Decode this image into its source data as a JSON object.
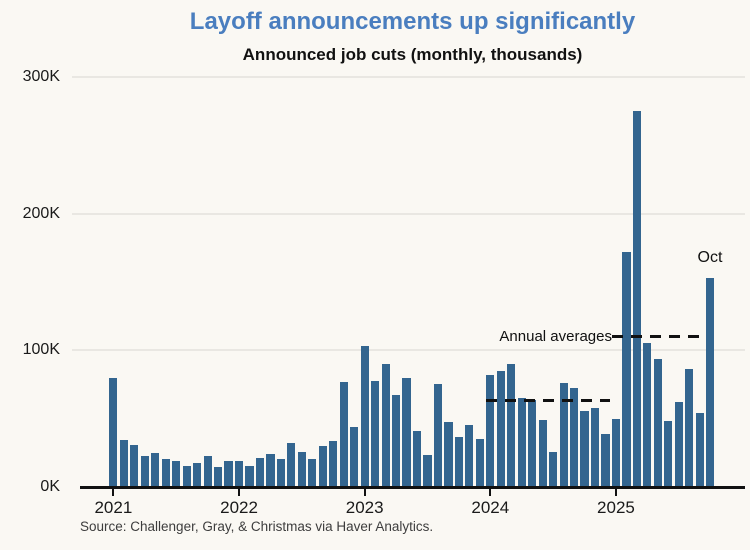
{
  "title": "Layoff announcements up significantly",
  "subtitle": "Announced job cuts (monthly, thousands)",
  "source": "Source: Challenger, Gray, & Christmas via Haver Analytics.",
  "annotations": {
    "annual_averages_label": "Annual averages",
    "last_bar_label": "Oct"
  },
  "colors": {
    "background": "#faf8f3",
    "bar": "#33658f",
    "title_blue": "#4a7ebf",
    "gridline": "#e9e7e2",
    "axis_and_dashes": "#111111",
    "source_text": "#3d3d3d"
  },
  "chart_data": {
    "type": "bar",
    "title": "Announced job cuts (monthly, thousands)",
    "unit": "thousands of announced job cuts per month",
    "x": [
      "2021-01",
      "2021-02",
      "2021-03",
      "2021-04",
      "2021-05",
      "2021-06",
      "2021-07",
      "2021-08",
      "2021-09",
      "2021-10",
      "2021-11",
      "2021-12",
      "2022-01",
      "2022-02",
      "2022-03",
      "2022-04",
      "2022-05",
      "2022-06",
      "2022-07",
      "2022-08",
      "2022-09",
      "2022-10",
      "2022-11",
      "2022-12",
      "2023-01",
      "2023-02",
      "2023-03",
      "2023-04",
      "2023-05",
      "2023-06",
      "2023-07",
      "2023-08",
      "2023-09",
      "2023-10",
      "2023-11",
      "2023-12",
      "2024-01",
      "2024-02",
      "2024-03",
      "2024-04",
      "2024-05",
      "2024-06",
      "2024-07",
      "2024-08",
      "2024-09",
      "2024-10",
      "2024-11",
      "2024-12",
      "2025-01",
      "2025-02",
      "2025-03",
      "2025-04",
      "2025-05",
      "2025-06",
      "2025-07",
      "2025-08",
      "2025-09",
      "2025-10"
    ],
    "values": [
      79.6,
      34.5,
      30.6,
      22.9,
      24.6,
      20.5,
      18.9,
      15.7,
      17.9,
      22.8,
      14.9,
      19.1,
      19.1,
      15.2,
      21.4,
      24.3,
      20.7,
      32.5,
      25.8,
      20.5,
      30.0,
      33.8,
      76.8,
      43.7,
      102.9,
      77.8,
      89.7,
      67.0,
      80.1,
      40.7,
      23.7,
      75.2,
      47.5,
      36.8,
      45.5,
      34.8,
      82.3,
      84.6,
      90.3,
      64.8,
      63.8,
      48.8,
      25.9,
      75.9,
      72.8,
      55.6,
      57.7,
      38.8,
      49.8,
      172.0,
      275.2,
      105.4,
      93.8,
      48.0,
      62.1,
      86.0,
      54.1,
      153.1
    ],
    "xtick_labels": [
      "2021",
      "2022",
      "2023",
      "2024",
      "2025"
    ],
    "ytick_values": [
      0,
      100,
      200,
      300
    ],
    "ytick_labels": [
      "0K",
      "100K",
      "200K",
      "300K"
    ],
    "ylim": [
      0,
      300
    ],
    "grid": "horizontal",
    "legend": "none",
    "annual_average_lines": [
      {
        "year": "2024",
        "value": 63.4,
        "start": "2024-01",
        "end": "2024-12",
        "ends_at_bar": false
      },
      {
        "year": "2025",
        "value": 110.0,
        "start": "2025-01",
        "end": "2025-10",
        "ends_at_bar": true
      }
    ]
  }
}
